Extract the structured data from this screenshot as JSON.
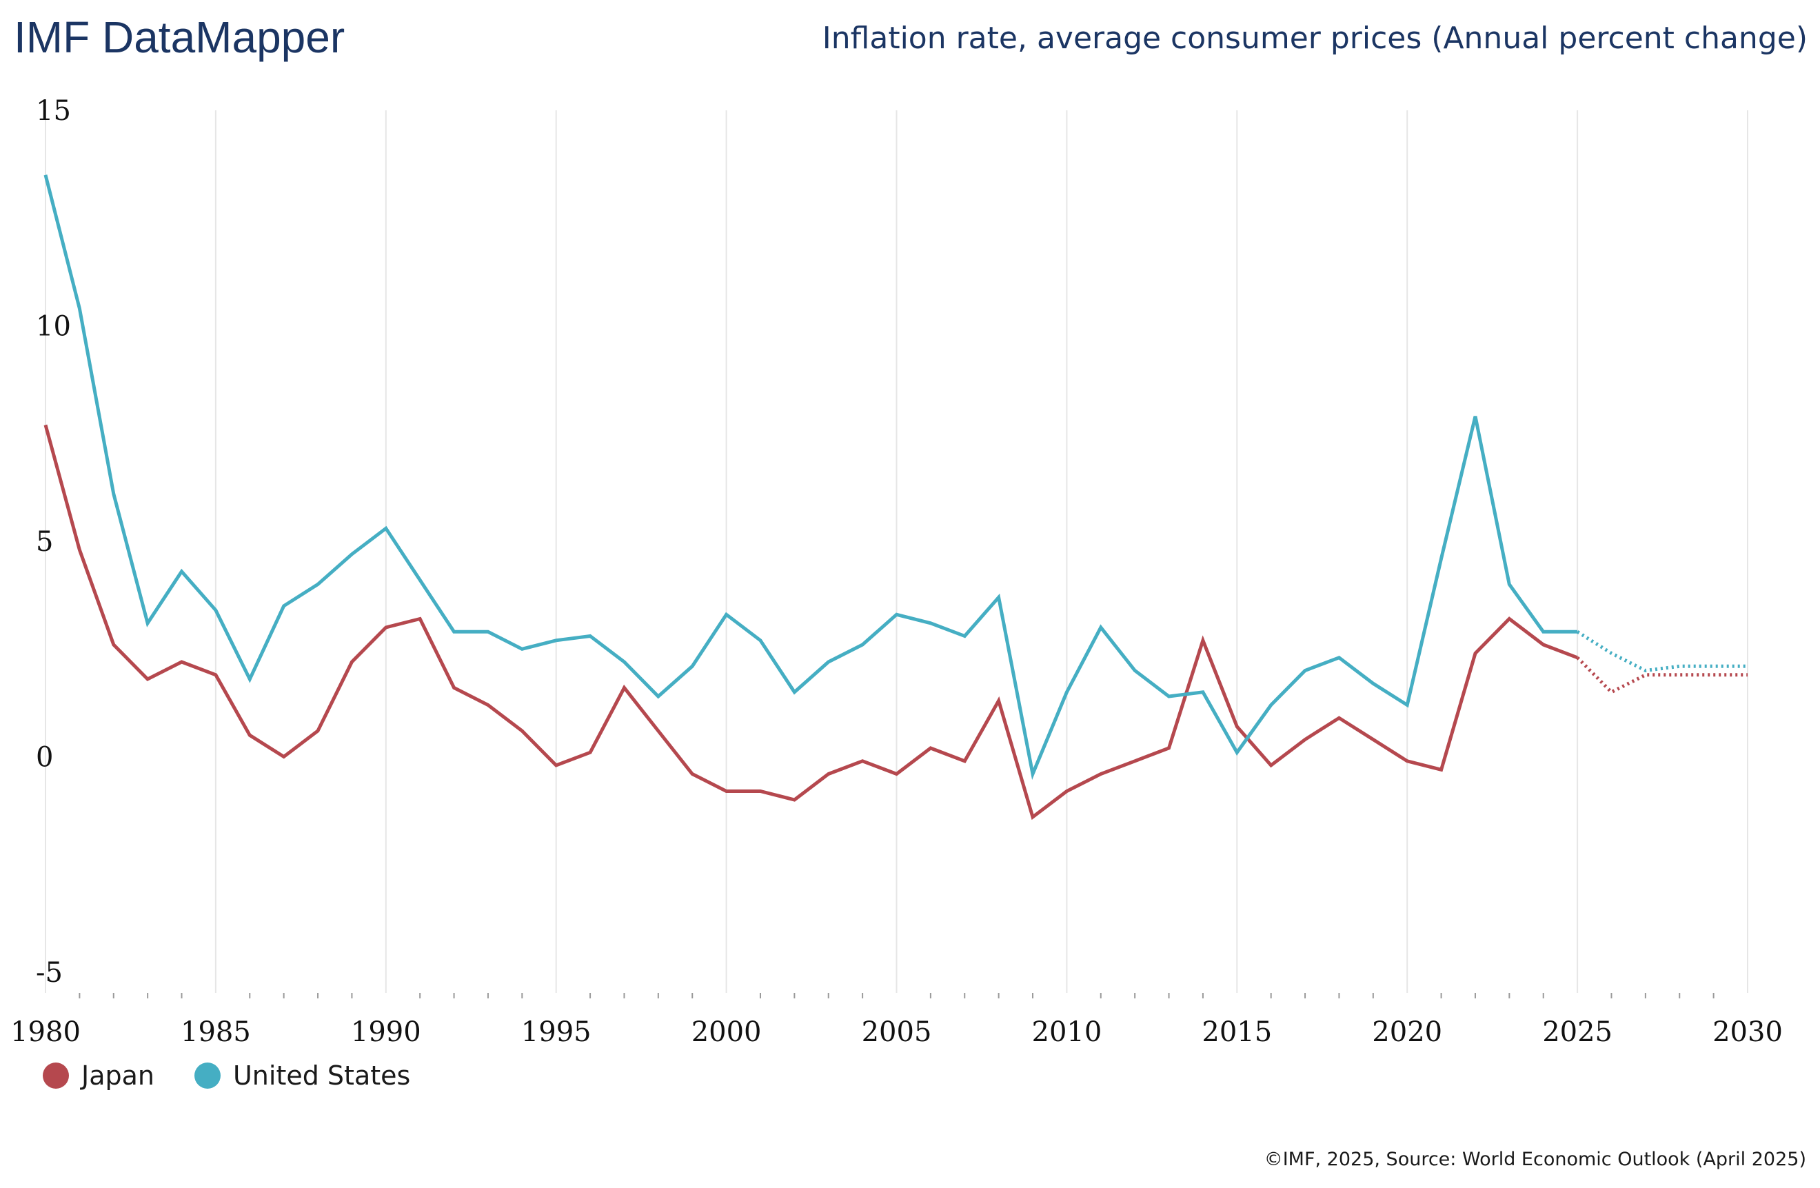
{
  "header": {
    "brand": "IMF DataMapper",
    "indicator": "Inflation rate, average consumer prices (Annual percent change)"
  },
  "footer": {
    "source": "©IMF, 2025, Source: World Economic Outlook (April 2025)"
  },
  "chart_data": {
    "type": "line",
    "title": "Inflation rate, average consumer prices (Annual percent change)",
    "xlabel": "",
    "ylabel": "",
    "xlim": [
      1980,
      2030
    ],
    "ylim": [
      -5,
      15
    ],
    "yticks": [
      "15",
      "10",
      "5",
      "0",
      "-5"
    ],
    "ytick_values": [
      15,
      10,
      5,
      0,
      -5
    ],
    "xticks": [
      "1980",
      "1985",
      "1990",
      "1995",
      "2000",
      "2005",
      "2010",
      "2015",
      "2020",
      "2025",
      "2030"
    ],
    "xtick_values": [
      1980,
      1985,
      1990,
      1995,
      2000,
      2005,
      2010,
      2015,
      2020,
      2025,
      2030
    ],
    "grid": "vertical",
    "legend_position": "bottom-left",
    "projection_start": 2025,
    "x": [
      1980,
      1981,
      1982,
      1983,
      1984,
      1985,
      1986,
      1987,
      1988,
      1989,
      1990,
      1991,
      1992,
      1993,
      1994,
      1995,
      1996,
      1997,
      1998,
      1999,
      2000,
      2001,
      2002,
      2003,
      2004,
      2005,
      2006,
      2007,
      2008,
      2009,
      2010,
      2011,
      2012,
      2013,
      2014,
      2015,
      2016,
      2017,
      2018,
      2019,
      2020,
      2021,
      2022,
      2023,
      2024,
      2025,
      2026,
      2027,
      2028,
      2029,
      2030
    ],
    "series": [
      {
        "name": "Japan",
        "color": "#b5484e",
        "values": [
          7.7,
          4.8,
          2.6,
          1.8,
          2.2,
          1.9,
          0.5,
          0.0,
          0.6,
          2.2,
          3.0,
          3.2,
          1.6,
          1.2,
          0.6,
          -0.2,
          0.1,
          1.6,
          0.6,
          -0.4,
          -0.8,
          -0.8,
          -1.0,
          -0.4,
          -0.1,
          -0.4,
          0.2,
          -0.1,
          1.3,
          -1.4,
          -0.8,
          -0.4,
          -0.1,
          0.2,
          2.7,
          0.7,
          -0.2,
          0.4,
          0.9,
          0.4,
          -0.1,
          -0.3,
          2.4,
          3.2,
          2.6,
          2.3,
          1.5,
          1.9,
          1.9,
          1.9,
          1.9
        ]
      },
      {
        "name": "United States",
        "color": "#45aec3",
        "values": [
          13.5,
          10.4,
          6.1,
          3.1,
          4.3,
          3.4,
          1.8,
          3.5,
          4.0,
          4.7,
          5.3,
          4.1,
          2.9,
          2.9,
          2.5,
          2.7,
          2.8,
          2.2,
          1.4,
          2.1,
          3.3,
          2.7,
          1.5,
          2.2,
          2.6,
          3.3,
          3.1,
          2.8,
          3.7,
          -0.4,
          1.5,
          3.0,
          2.0,
          1.4,
          1.5,
          0.1,
          1.2,
          2.0,
          2.3,
          1.7,
          1.2,
          4.6,
          7.9,
          4.0,
          2.9,
          2.9,
          2.4,
          2.0,
          2.1,
          2.1,
          2.1
        ]
      }
    ]
  }
}
